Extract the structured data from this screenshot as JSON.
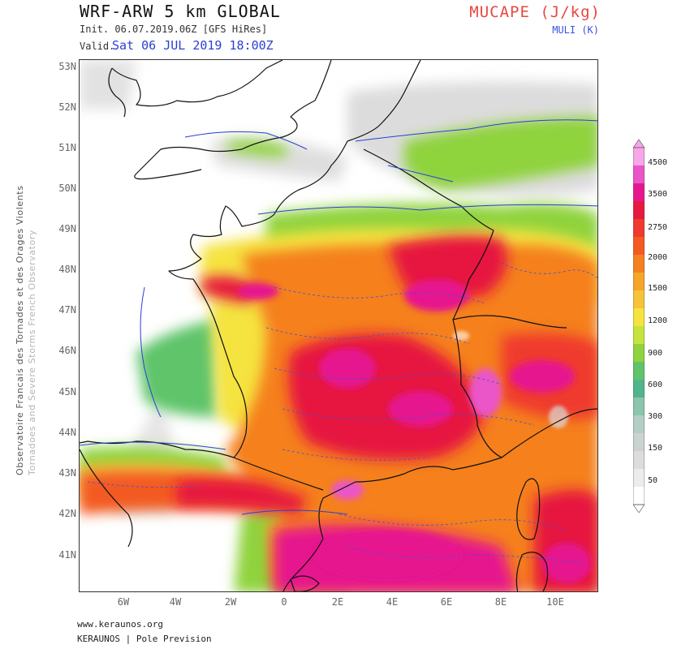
{
  "header": {
    "title": "WRF-ARW 5 km GLOBAL",
    "init": "Init.  06.07.2019.06Z [GFS HiRes]",
    "valid_label": "Valid.",
    "valid_value": "Sat 06 JUL 2019 18:00Z",
    "param_main": "MUCAPE (J/kg)",
    "param_sub": "MULI (K)"
  },
  "axes": {
    "lat_labels": [
      "53N",
      "52N",
      "51N",
      "50N",
      "49N",
      "48N",
      "47N",
      "46N",
      "45N",
      "44N",
      "43N",
      "42N",
      "41N"
    ],
    "lon_labels": [
      "6W",
      "4W",
      "2W",
      "0",
      "2E",
      "4E",
      "6E",
      "8E",
      "10E"
    ]
  },
  "sidebar": {
    "line1": "Observatoire Francais des Tornades et des Orages Violents",
    "line2": "Tornadoes and Severe Storms French Observatory"
  },
  "colorbar": {
    "labels": [
      "4500",
      "3500",
      "2750",
      "2000",
      "1500",
      "1200",
      "900",
      "600",
      "300",
      "150",
      "50"
    ],
    "colors": [
      "#f7a6e8",
      "#ea55c8",
      "#e6178e",
      "#e6193f",
      "#ef3a2f",
      "#f35a22",
      "#f5801f",
      "#f4a62a",
      "#f6c43a",
      "#f5e33f",
      "#c6e33e",
      "#8fd33e",
      "#5fc46b",
      "#4fb68c",
      "#8cc4ad",
      "#b4cec4",
      "#cbd3d0",
      "#dcdcdc",
      "#ececec",
      "#ffffff"
    ]
  },
  "footer": {
    "url": "www.keraunos.org",
    "brand": "KERAUNOS | Pole Prevision"
  }
}
